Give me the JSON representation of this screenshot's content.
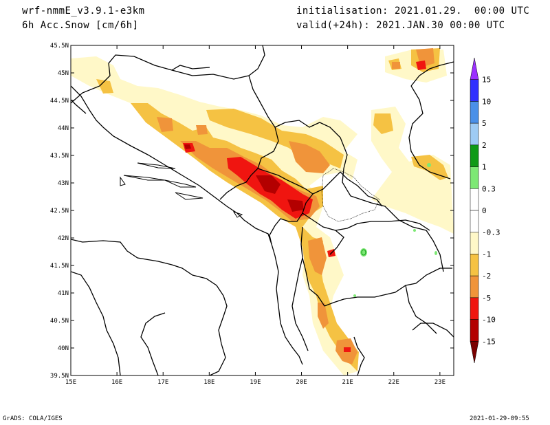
{
  "header": {
    "model": "wrf-nmmE_v3.9.1-e3km",
    "field": "6h Acc.Snow [cm/6h]",
    "init": "initialisation: 2021.01.29.  00:00 UTC",
    "valid": "valid(+24h): 2021.JAN.30 00:00 UTC"
  },
  "footer": {
    "credit": "GrADS: COLA/IGES",
    "timestamp": "2021-01-29-09:55"
  },
  "map": {
    "lon_range": [
      15,
      23.3
    ],
    "lat_range": [
      39.5,
      45.5
    ],
    "x_ticks": [
      "15E",
      "16E",
      "17E",
      "18E",
      "19E",
      "20E",
      "21E",
      "22E",
      "23E"
    ],
    "y_ticks": [
      "45.5N",
      "45N",
      "44.5N",
      "44N",
      "43.5N",
      "43N",
      "42.5N",
      "42N",
      "41.5N",
      "41N",
      "40.5N",
      "40N",
      "39.5N"
    ]
  },
  "colorbar": {
    "bins": [
      {
        "color": "#9B30FF"
      },
      {
        "color": "#3030FF"
      },
      {
        "color": "#4A90E8"
      },
      {
        "color": "#9ECBF4"
      },
      {
        "color": "#0F9A16"
      },
      {
        "color": "#7DE874"
      },
      {
        "color": "#FFFFFF"
      },
      {
        "color": "#FFFFFF"
      },
      {
        "color": "#FFF8C8"
      },
      {
        "color": "#F5C243"
      },
      {
        "color": "#F0943A"
      },
      {
        "color": "#F01510"
      },
      {
        "color": "#B30000"
      },
      {
        "color": "#7A0000"
      }
    ],
    "labels": [
      "15",
      "10",
      "5",
      "2",
      "1",
      "0.3",
      "0",
      "-0.3",
      "-1",
      "-2",
      "-5",
      "-10",
      "-15"
    ]
  },
  "snow_colors": {
    "light": "#FFF8C8",
    "yellow": "#F5C243",
    "orange": "#F0943A",
    "red": "#F01510",
    "darkred": "#B30000",
    "green": "#7DE874"
  }
}
